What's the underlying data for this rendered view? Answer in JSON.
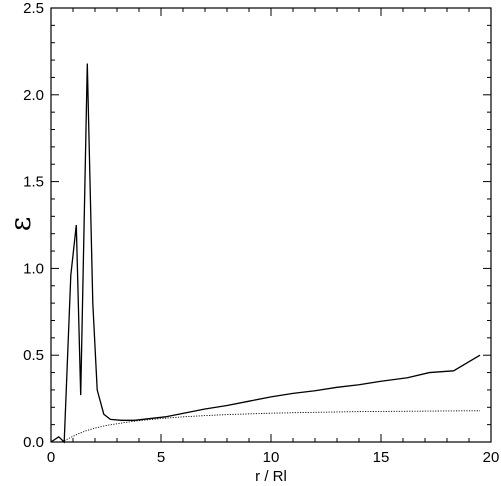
{
  "chart_data": {
    "type": "line",
    "xlabel": "r / Rl",
    "ylabel": "ε",
    "xlim": [
      0,
      20
    ],
    "ylim": [
      0,
      2.5
    ],
    "xticks": [
      "0",
      "5",
      "10",
      "15",
      "20"
    ],
    "yticks": [
      "0.0",
      "0.5",
      "1.0",
      "1.5",
      "2.0",
      "2.5"
    ],
    "grid": false,
    "legend": "none",
    "series": [
      {
        "style": "solid",
        "color": "#000000",
        "points": [
          [
            0.0,
            0.0
          ],
          [
            0.35,
            0.03
          ],
          [
            0.6,
            0.0
          ],
          [
            0.9,
            0.96
          ],
          [
            1.15,
            1.25
          ],
          [
            1.35,
            0.27
          ],
          [
            1.65,
            2.18
          ],
          [
            1.9,
            0.8
          ],
          [
            2.1,
            0.3
          ],
          [
            2.4,
            0.16
          ],
          [
            2.7,
            0.13
          ],
          [
            3.2,
            0.125
          ],
          [
            3.8,
            0.125
          ],
          [
            4.5,
            0.135
          ],
          [
            5.2,
            0.145
          ],
          [
            6.0,
            0.165
          ],
          [
            7.0,
            0.19
          ],
          [
            8.0,
            0.21
          ],
          [
            9.0,
            0.235
          ],
          [
            10.0,
            0.26
          ],
          [
            11.0,
            0.28
          ],
          [
            12.0,
            0.295
          ],
          [
            13.0,
            0.315
          ],
          [
            14.0,
            0.33
          ],
          [
            15.0,
            0.35
          ],
          [
            16.2,
            0.37
          ],
          [
            17.2,
            0.4
          ],
          [
            18.3,
            0.41
          ],
          [
            19.5,
            0.5
          ]
        ]
      },
      {
        "style": "dotted",
        "color": "#000000",
        "points": [
          [
            0.5,
            0.0
          ],
          [
            0.8,
            0.02
          ],
          [
            1.2,
            0.045
          ],
          [
            1.6,
            0.065
          ],
          [
            2.0,
            0.08
          ],
          [
            2.5,
            0.095
          ],
          [
            3.0,
            0.105
          ],
          [
            3.5,
            0.115
          ],
          [
            4.0,
            0.123
          ],
          [
            5.0,
            0.135
          ],
          [
            6.0,
            0.145
          ],
          [
            7.0,
            0.152
          ],
          [
            8.0,
            0.158
          ],
          [
            9.0,
            0.162
          ],
          [
            10.0,
            0.166
          ],
          [
            12.0,
            0.171
          ],
          [
            14.0,
            0.175
          ],
          [
            16.0,
            0.177
          ],
          [
            18.0,
            0.179
          ],
          [
            19.5,
            0.18
          ]
        ]
      }
    ]
  }
}
